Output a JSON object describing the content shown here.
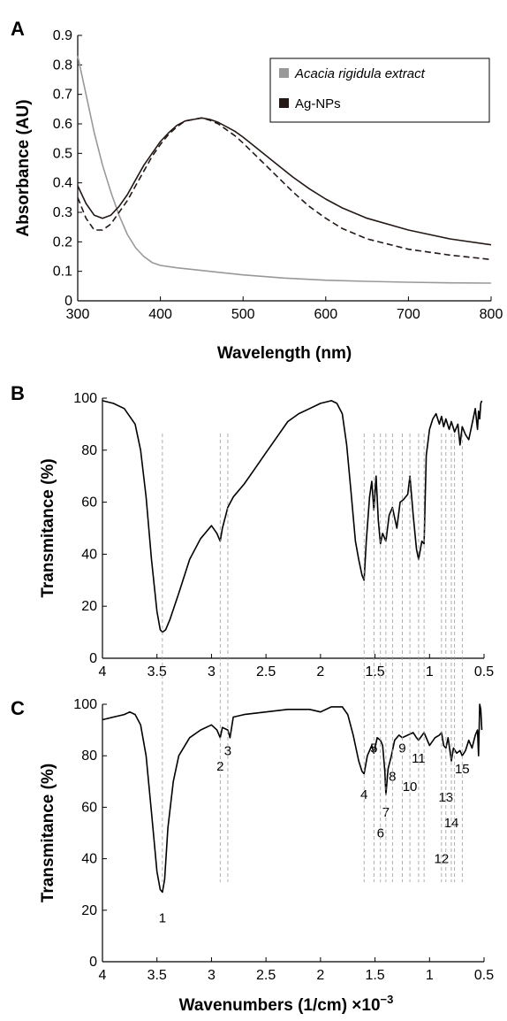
{
  "chart_data": [
    {
      "panel": "A",
      "type": "line",
      "xlabel": "Wavelength (nm)",
      "ylabel": "Absorbance (AU)",
      "xlim": [
        300,
        800
      ],
      "ylim": [
        0,
        0.9
      ],
      "xticks": [
        300,
        400,
        500,
        600,
        700,
        800
      ],
      "yticks": [
        0,
        0.1,
        0.2,
        0.3,
        0.4,
        0.5,
        0.6,
        0.7,
        0.8,
        0.9
      ],
      "legend": {
        "placement": "top-right",
        "entries": [
          {
            "label": "Acacia rigidula extract",
            "italic": true,
            "color": "#999999"
          },
          {
            "label": "Ag-NPs",
            "italic": false,
            "color": "#231815"
          }
        ]
      },
      "series": [
        {
          "name": "Acacia rigidula extract",
          "color": "#999999",
          "dash": "solid",
          "x": [
            300,
            310,
            320,
            330,
            340,
            350,
            360,
            370,
            380,
            390,
            400,
            420,
            450,
            500,
            550,
            600,
            650,
            700,
            750,
            800
          ],
          "y": [
            0.83,
            0.7,
            0.57,
            0.46,
            0.37,
            0.29,
            0.225,
            0.18,
            0.15,
            0.13,
            0.12,
            0.112,
            0.103,
            0.088,
            0.077,
            0.07,
            0.066,
            0.063,
            0.061,
            0.06
          ]
        },
        {
          "name": "Ag-NPs",
          "color": "#231815",
          "dash": "solid",
          "x": [
            300,
            310,
            320,
            330,
            340,
            350,
            360,
            370,
            380,
            390,
            400,
            410,
            420,
            430,
            440,
            450,
            460,
            470,
            480,
            490,
            500,
            520,
            540,
            560,
            580,
            600,
            620,
            650,
            700,
            750,
            800
          ],
          "y": [
            0.39,
            0.33,
            0.29,
            0.28,
            0.29,
            0.32,
            0.36,
            0.41,
            0.46,
            0.5,
            0.54,
            0.57,
            0.595,
            0.61,
            0.615,
            0.62,
            0.615,
            0.605,
            0.59,
            0.575,
            0.555,
            0.51,
            0.465,
            0.42,
            0.38,
            0.345,
            0.315,
            0.28,
            0.24,
            0.21,
            0.19
          ]
        },
        {
          "name": "Ag-NPs (dashed)",
          "color": "#231815",
          "dash": "dashed",
          "x": [
            300,
            310,
            320,
            330,
            340,
            350,
            360,
            370,
            380,
            390,
            400,
            410,
            420,
            430,
            440,
            450,
            460,
            470,
            480,
            490,
            500,
            520,
            540,
            560,
            580,
            600,
            620,
            650,
            700,
            750,
            800
          ],
          "y": [
            0.35,
            0.28,
            0.24,
            0.24,
            0.26,
            0.3,
            0.34,
            0.39,
            0.44,
            0.49,
            0.53,
            0.565,
            0.59,
            0.61,
            0.615,
            0.62,
            0.612,
            0.6,
            0.58,
            0.56,
            0.535,
            0.48,
            0.425,
            0.37,
            0.32,
            0.28,
            0.245,
            0.21,
            0.175,
            0.155,
            0.14
          ]
        }
      ]
    },
    {
      "panel": "B",
      "type": "line",
      "xlabel": "",
      "ylabel": "Transmitance (%)",
      "xlim": [
        4,
        0.5
      ],
      "ylim": [
        0,
        100
      ],
      "xticks": [
        4,
        3.5,
        3,
        2.5,
        2,
        1.5,
        1,
        0.5
      ],
      "yticks": [
        0,
        20,
        40,
        60,
        80,
        100
      ],
      "series": [
        {
          "name": "",
          "color": "#000000",
          "x": [
            4,
            3.9,
            3.8,
            3.7,
            3.65,
            3.6,
            3.55,
            3.5,
            3.47,
            3.45,
            3.42,
            3.38,
            3.3,
            3.2,
            3.1,
            3.0,
            2.95,
            2.92,
            2.9,
            2.85,
            2.8,
            2.7,
            2.6,
            2.5,
            2.4,
            2.3,
            2.2,
            2.1,
            2.0,
            1.9,
            1.85,
            1.8,
            1.76,
            1.72,
            1.68,
            1.65,
            1.62,
            1.6,
            1.58,
            1.55,
            1.53,
            1.51,
            1.49,
            1.47,
            1.45,
            1.43,
            1.4,
            1.37,
            1.34,
            1.3,
            1.27,
            1.24,
            1.2,
            1.18,
            1.15,
            1.12,
            1.1,
            1.07,
            1.05,
            1.03,
            1.0,
            0.97,
            0.94,
            0.91,
            0.89,
            0.87,
            0.85,
            0.82,
            0.8,
            0.77,
            0.74,
            0.72,
            0.7,
            0.67,
            0.64,
            0.61,
            0.58,
            0.56,
            0.55,
            0.54,
            0.53,
            0.52
          ],
          "y": [
            99,
            98,
            96,
            90,
            80,
            62,
            38,
            18,
            11,
            10,
            11,
            15,
            25,
            38,
            46,
            51,
            48,
            45,
            50,
            58,
            62,
            67,
            73,
            79,
            85,
            91,
            94,
            96,
            98,
            99,
            98,
            94,
            82,
            64,
            45,
            38,
            32,
            30,
            45,
            62,
            68,
            57,
            70,
            53,
            44,
            48,
            45,
            55,
            58,
            50,
            60,
            61,
            63,
            70,
            55,
            42,
            38,
            45,
            44,
            78,
            88,
            92,
            94,
            90,
            93,
            89,
            92,
            88,
            91,
            87,
            90,
            82,
            89,
            86,
            84,
            90,
            96,
            88,
            95,
            92,
            98,
            99
          ]
        }
      ],
      "guide_x": [
        3.45,
        2.92,
        2.85,
        1.6,
        1.51,
        1.45,
        1.4,
        1.34,
        1.25,
        1.18,
        1.1,
        1.05,
        0.89,
        0.85,
        0.8,
        0.77,
        0.7
      ]
    },
    {
      "panel": "C",
      "type": "line",
      "xlabel": "Wavenumbers (1/cm) ×10",
      "xlabel_exponent": "−3",
      "ylabel": "Transmitance (%)",
      "xlim": [
        4,
        0.5
      ],
      "ylim": [
        0,
        100
      ],
      "xticks": [
        4,
        3.5,
        3,
        2.5,
        2,
        1.5,
        1,
        0.5
      ],
      "yticks": [
        0,
        20,
        40,
        60,
        80,
        100
      ],
      "series": [
        {
          "name": "",
          "color": "#000000",
          "x": [
            4,
            3.9,
            3.8,
            3.75,
            3.7,
            3.65,
            3.6,
            3.55,
            3.5,
            3.47,
            3.45,
            3.43,
            3.4,
            3.35,
            3.3,
            3.2,
            3.1,
            3.0,
            2.95,
            2.92,
            2.9,
            2.85,
            2.83,
            2.8,
            2.7,
            2.5,
            2.3,
            2.1,
            2.0,
            1.9,
            1.8,
            1.75,
            1.7,
            1.65,
            1.62,
            1.6,
            1.57,
            1.53,
            1.51,
            1.48,
            1.45,
            1.43,
            1.41,
            1.4,
            1.38,
            1.35,
            1.32,
            1.28,
            1.25,
            1.2,
            1.15,
            1.12,
            1.1,
            1.05,
            1.0,
            0.95,
            0.91,
            0.89,
            0.87,
            0.85,
            0.83,
            0.8,
            0.78,
            0.75,
            0.72,
            0.7,
            0.67,
            0.64,
            0.61,
            0.58,
            0.56,
            0.55,
            0.54,
            0.53,
            0.52
          ],
          "y": [
            94,
            95,
            96,
            97,
            96,
            92,
            80,
            58,
            35,
            28,
            27,
            32,
            52,
            70,
            80,
            87,
            90,
            92,
            90,
            87,
            91,
            90,
            87,
            95,
            96,
            97,
            98,
            98,
            97,
            99,
            99,
            96,
            88,
            78,
            74,
            73,
            80,
            84,
            81,
            87,
            86,
            84,
            74,
            65,
            75,
            80,
            86,
            88,
            87,
            88,
            89,
            87,
            86,
            89,
            84,
            87,
            88,
            89,
            84,
            83,
            87,
            78,
            83,
            81,
            82,
            80,
            82,
            86,
            83,
            88,
            90,
            80,
            100,
            98,
            90
          ]
        }
      ],
      "peaks": [
        {
          "label": "1",
          "x": 3.45,
          "y_label": 17
        },
        {
          "label": "2",
          "x": 2.92,
          "y_label": 76
        },
        {
          "label": "3",
          "x": 2.85,
          "y_label": 82
        },
        {
          "label": "4",
          "x": 1.6,
          "y_label": 65
        },
        {
          "label": "5",
          "x": 1.51,
          "y_label": 83
        },
        {
          "label": "6",
          "x": 1.45,
          "y_label": 50
        },
        {
          "label": "7",
          "x": 1.4,
          "y_label": 58
        },
        {
          "label": "8",
          "x": 1.34,
          "y_label": 72
        },
        {
          "label": "9",
          "x": 1.25,
          "y_label": 83
        },
        {
          "label": "10",
          "x": 1.18,
          "y_label": 68
        },
        {
          "label": "11",
          "x": 1.1,
          "y_label": 79
        },
        {
          "label": "12",
          "x": 0.89,
          "y_label": 40
        },
        {
          "label": "13",
          "x": 0.85,
          "y_label": 64
        },
        {
          "label": "14",
          "x": 0.8,
          "y_label": 54
        },
        {
          "label": "15",
          "x": 0.7,
          "y_label": 75
        }
      ],
      "guide_x": [
        3.45,
        2.92,
        2.85,
        1.6,
        1.51,
        1.45,
        1.4,
        1.34,
        1.25,
        1.18,
        1.1,
        1.05,
        0.89,
        0.85,
        0.8,
        0.77,
        0.7
      ]
    }
  ]
}
